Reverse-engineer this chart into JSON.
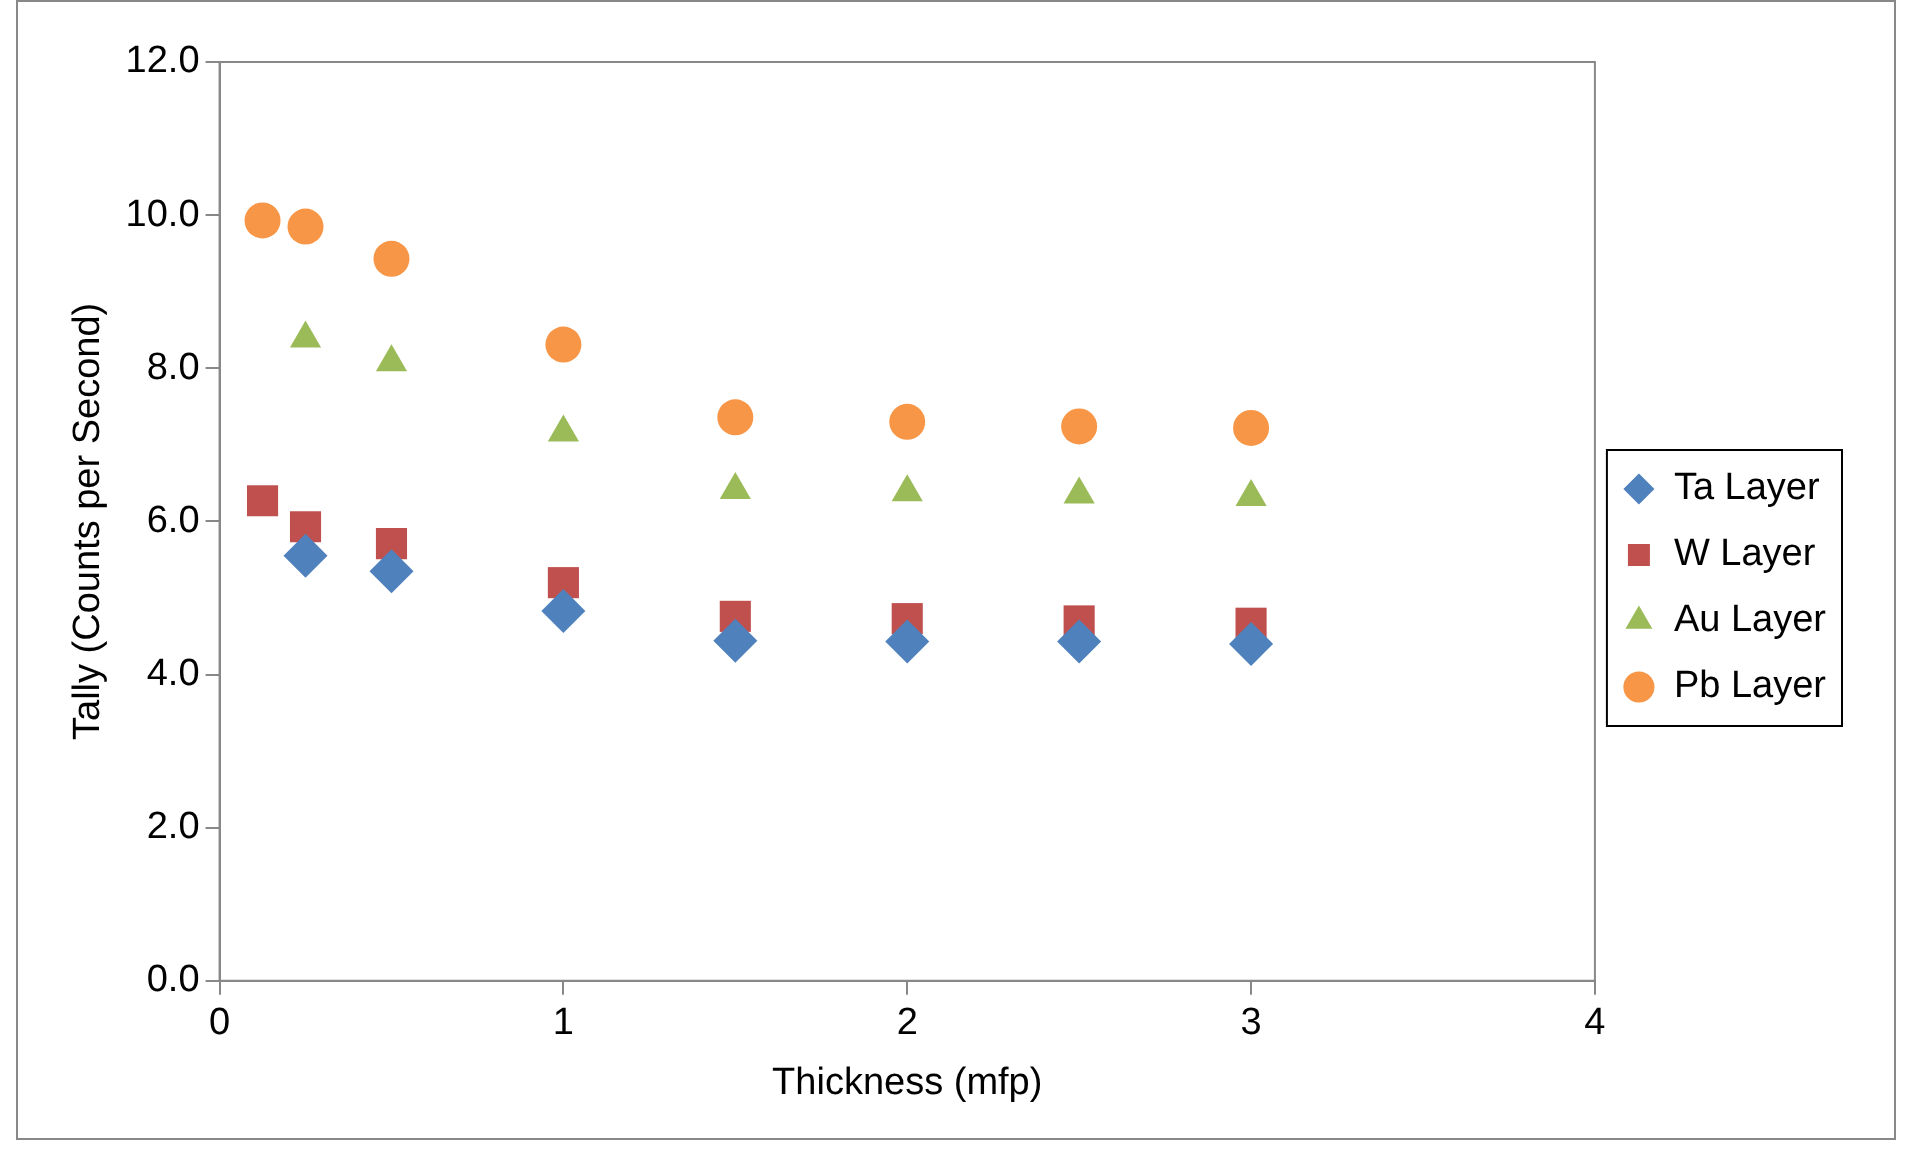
{
  "chart_data": {
    "type": "scatter",
    "xlabel": "Thickness (mfp)",
    "ylabel": "Tally (Counts per Second)",
    "x": [
      0.125,
      0.25,
      0.5,
      1,
      1.5,
      2,
      2.5,
      3
    ],
    "series": [
      {
        "name": "Ta Layer",
        "color": "#4f81bd",
        "marker": "diamond",
        "values": [
          null,
          5.55,
          5.35,
          4.83,
          4.44,
          4.43,
          4.43,
          4.4
        ]
      },
      {
        "name": "W Layer",
        "color": "#c0504d",
        "marker": "square",
        "values": [
          6.27,
          5.93,
          5.71,
          5.2,
          4.76,
          4.73,
          4.7,
          4.67
        ]
      },
      {
        "name": "Au Layer",
        "color": "#9bbb59",
        "marker": "triangle",
        "values": [
          null,
          8.39,
          8.08,
          7.16,
          6.41,
          6.38,
          6.35,
          6.32
        ]
      },
      {
        "name": "Pb Layer",
        "color": "#f79646",
        "marker": "circle",
        "values": [
          9.93,
          9.85,
          9.43,
          8.31,
          7.36,
          7.3,
          7.24,
          7.22
        ]
      }
    ],
    "xlim": [
      0,
      4
    ],
    "xticks": [
      0,
      1,
      2,
      3,
      4
    ],
    "ylim": [
      0,
      12
    ],
    "yticks": [
      {
        "value": 0,
        "label": "0.0"
      },
      {
        "value": 2,
        "label": "2.0"
      },
      {
        "value": 4,
        "label": "4.0"
      },
      {
        "value": 6,
        "label": "6.0"
      },
      {
        "value": 8,
        "label": "8.0"
      },
      {
        "value": 10,
        "label": "10.0"
      },
      {
        "value": 12,
        "label": "12.0"
      }
    ],
    "legend": "right",
    "grid": false
  }
}
